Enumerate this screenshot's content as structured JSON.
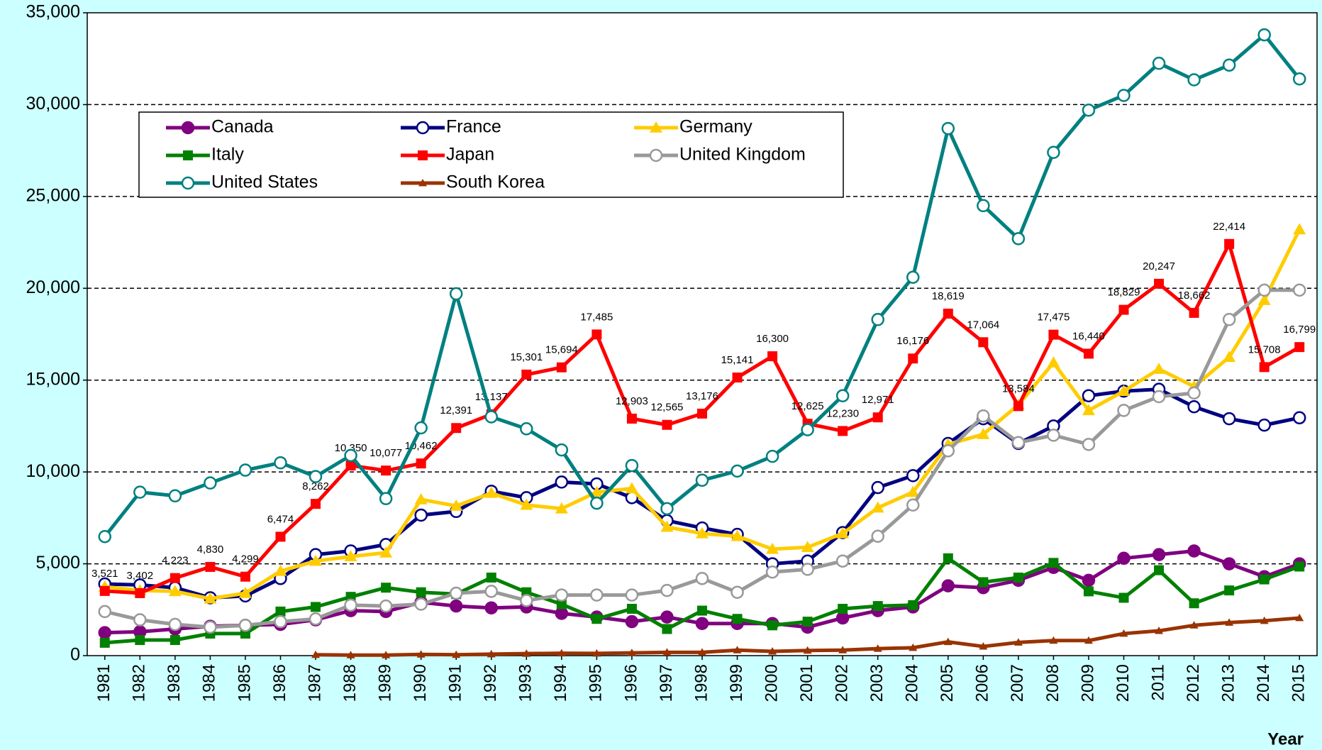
{
  "chart_data": {
    "type": "line",
    "xlabel": "Year",
    "categories": [
      "1981",
      "1982",
      "1983",
      "1984",
      "1985",
      "1986",
      "1987",
      "1988",
      "1989",
      "1990",
      "1991",
      "1992",
      "1993",
      "1994",
      "1995",
      "1996",
      "1997",
      "1998",
      "1999",
      "2000",
      "2001",
      "2002",
      "2003",
      "2004",
      "2005",
      "2006",
      "2007",
      "2008",
      "2009",
      "2010",
      "2011",
      "2012",
      "2013",
      "2014",
      "2015"
    ],
    "ylim": [
      0,
      35000
    ],
    "yticks": [
      0,
      {
        "value": 5000,
        "label": "5,000"
      },
      {
        "value": 10000,
        "label": "10,000"
      },
      {
        "value": 15000,
        "label": "15,000"
      },
      {
        "value": 20000,
        "label": "20,000"
      },
      {
        "value": 25000,
        "label": "25,000"
      },
      {
        "value": 30000,
        "label": "30,000"
      },
      {
        "value": 35000,
        "label": "35,000"
      }
    ],
    "grid": true,
    "series": [
      {
        "name": "Canada",
        "color": "#800080",
        "marker": "circle-filled",
        "values": [
          1250,
          1300,
          1450,
          1600,
          1650,
          1700,
          1950,
          2450,
          2400,
          2900,
          2700,
          2600,
          2650,
          2300,
          2100,
          1850,
          2100,
          1750,
          1750,
          1750,
          1550,
          2050,
          2450,
          2650,
          3800,
          3700,
          4100,
          4800,
          4100,
          5300,
          5500,
          5700,
          5000,
          4300,
          5000
        ]
      },
      {
        "name": "France",
        "color": "#000080",
        "marker": "circle-open",
        "values": [
          3900,
          3850,
          3700,
          3150,
          3250,
          4200,
          5500,
          5700,
          6050,
          7650,
          7850,
          8950,
          8600,
          9450,
          9350,
          8600,
          7350,
          6950,
          6600,
          5000,
          5150,
          6700,
          9150,
          9800,
          11550,
          12900,
          11550,
          12500,
          14150,
          14400,
          14500,
          13550,
          12900,
          12550,
          12950
        ]
      },
      {
        "name": "Germany",
        "color": "#ffcc00",
        "marker": "triangle",
        "values": [
          3750,
          3550,
          3500,
          3100,
          3400,
          4600,
          5150,
          5400,
          5600,
          8500,
          8150,
          8850,
          8200,
          8000,
          8900,
          9100,
          7000,
          6650,
          6500,
          5800,
          5900,
          6650,
          8050,
          8900,
          11500,
          12050,
          13650,
          15950,
          13350,
          14400,
          15600,
          14650,
          16250,
          19350,
          23200
        ]
      },
      {
        "name": "Italy",
        "color": "#008000",
        "marker": "square",
        "values": [
          700,
          850,
          850,
          1200,
          1200,
          2400,
          2650,
          3200,
          3700,
          3450,
          3350,
          4250,
          3450,
          2800,
          2000,
          2550,
          1450,
          2450,
          2000,
          1650,
          1850,
          2550,
          2700,
          2750,
          5300,
          4000,
          4250,
          5050,
          3500,
          3150,
          4650,
          2850,
          3550,
          4150,
          4850
        ]
      },
      {
        "name": "Japan",
        "color": "#ff0000",
        "marker": "square",
        "values": [
          3521,
          3402,
          4223,
          4830,
          4299,
          6474,
          8262,
          10350,
          10077,
          10462,
          12391,
          13137,
          15301,
          15694,
          17485,
          12903,
          12565,
          13176,
          15141,
          16300,
          12625,
          12230,
          12971,
          16176,
          18619,
          17064,
          13584,
          17475,
          16440,
          18829,
          20247,
          18662,
          22414,
          15708,
          16799
        ],
        "value_labels": [
          "3,521",
          "3,402",
          "4,223",
          "4,830",
          "4,299",
          "6,474",
          "8,262",
          "10,350",
          "10,077",
          "10,462",
          "12,391",
          "13,137",
          "15,301",
          "15,694",
          "17,485",
          "12,903",
          "12,565",
          "13,176",
          "15,141",
          "16,300",
          "12,625",
          "12,230",
          "12,971",
          "16,176",
          "18,619",
          "17,064",
          "13,584",
          "17,475",
          "16,440",
          "18,829",
          "20,247",
          "18,662",
          "22,414",
          "15,708",
          "16,799"
        ]
      },
      {
        "name": "United Kingdom",
        "color": "#999999",
        "marker": "circle-open",
        "values": [
          2400,
          1950,
          1700,
          1550,
          1650,
          1850,
          2000,
          2750,
          2700,
          2800,
          3400,
          3500,
          3000,
          3300,
          3300,
          3300,
          3550,
          4200,
          3450,
          4550,
          4700,
          5150,
          6500,
          8200,
          11150,
          13050,
          11600,
          12000,
          11500,
          13350,
          14100,
          14300,
          18300,
          19900,
          19900
        ]
      },
      {
        "name": "United States",
        "color": "#008080",
        "marker": "circle-open",
        "values": [
          6480,
          8900,
          8700,
          9400,
          10100,
          10500,
          9750,
          10900,
          8550,
          12400,
          19700,
          13000,
          12350,
          11200,
          8300,
          10350,
          8000,
          9550,
          10050,
          10850,
          12300,
          14150,
          18300,
          20600,
          28700,
          24500,
          22700,
          27400,
          29700,
          30500,
          32250,
          31350,
          32150,
          33800,
          31400
        ]
      },
      {
        "name": "South Korea",
        "color": "#993300",
        "marker": "triangle-small",
        "values": [
          null,
          null,
          null,
          null,
          null,
          null,
          50,
          30,
          30,
          70,
          50,
          80,
          110,
          130,
          120,
          150,
          180,
          180,
          300,
          230,
          280,
          300,
          380,
          430,
          750,
          500,
          720,
          820,
          820,
          1200,
          1350,
          1650,
          1800,
          1900,
          2050
        ]
      }
    ]
  }
}
